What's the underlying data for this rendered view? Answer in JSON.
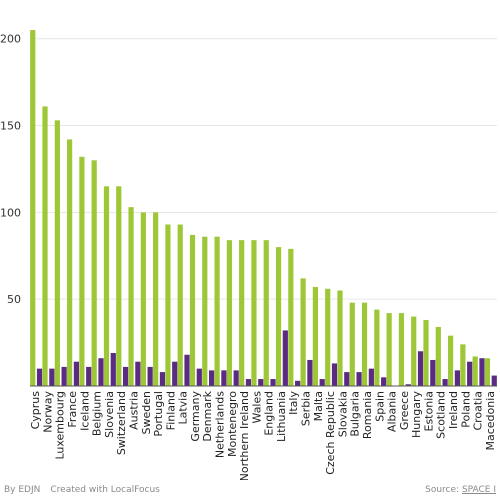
{
  "chart_data": {
    "type": "bar",
    "categories": [
      "Cyprus",
      "Norway",
      "Luxembourg",
      "France",
      "Iceland",
      "Belgium",
      "Slovenia",
      "Switzerland",
      "Austria",
      "Sweden",
      "Portugal",
      "Finland",
      "Latvia",
      "Germany",
      "Denmark",
      "Netherlands",
      "Montenegro",
      "Northern Ireland",
      "Wales",
      "England",
      "Lithuania",
      "Italy",
      "Serbia",
      "Malta",
      "Czech Republic",
      "Slovakia",
      "Bulgaria",
      "Romania",
      "Spain",
      "Albania",
      "Greece",
      "Hungary",
      "Estonia",
      "Scotland",
      "Ireland",
      "Poland",
      "Croatia",
      "Macedonia"
    ],
    "series": [
      {
        "values": [
          205,
          161,
          153,
          142,
          132,
          130,
          115,
          115,
          103,
          100,
          100,
          93,
          93,
          87,
          86,
          86,
          84,
          84,
          84,
          84,
          80,
          79,
          62,
          57,
          56,
          55,
          48,
          48,
          44,
          42,
          42,
          40,
          38,
          34,
          29,
          24,
          17,
          16
        ]
      },
      {
        "values": [
          10,
          10,
          11,
          14,
          11,
          16,
          19,
          11,
          14,
          11,
          8,
          14,
          18,
          10,
          9,
          9,
          9,
          4,
          4,
          4,
          32,
          3,
          15,
          4,
          13,
          8,
          8,
          10,
          5,
          0,
          1,
          20,
          15,
          4,
          9,
          14,
          16,
          6
        ]
      }
    ],
    "colors": [
      "#9ec738",
      "#5b2a82"
    ],
    "ylim": [
      0,
      220
    ],
    "yticks": [
      50,
      100,
      150,
      200
    ],
    "grid": true
  },
  "footer": {
    "by": "By EDJN",
    "created": "Created with LocalFocus",
    "source_prefix": "Source:",
    "source_link": "SPACE I"
  }
}
